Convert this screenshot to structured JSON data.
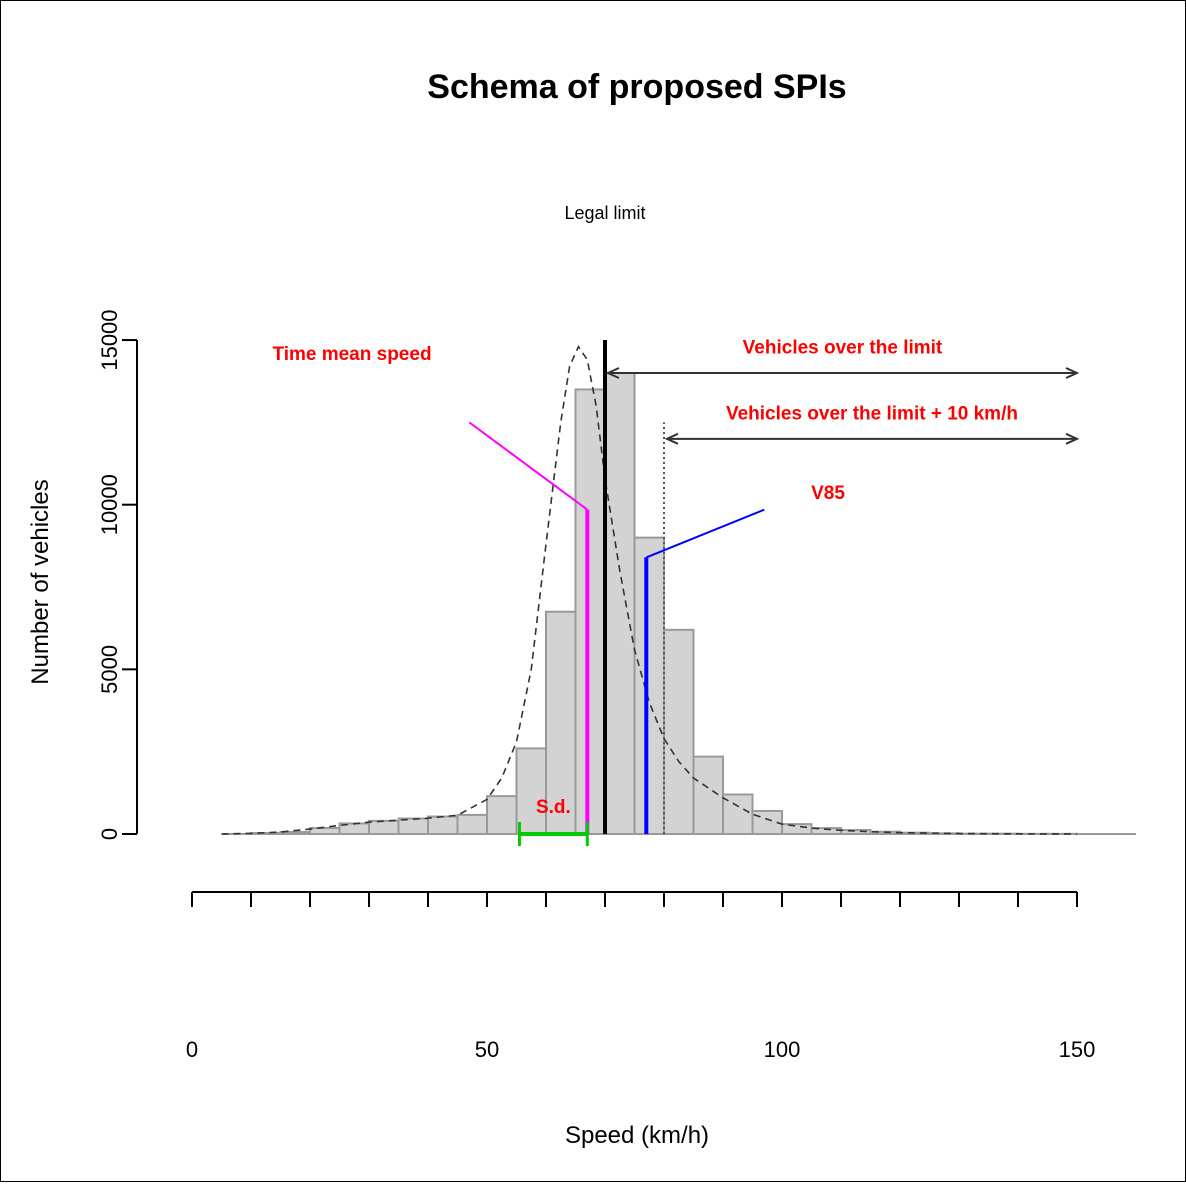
{
  "chart_data": {
    "type": "bar",
    "title": "Schema of proposed SPIs",
    "xlabel": "Speed (km/h)",
    "ylabel": "Number of vehicles",
    "xlim": [
      0,
      160
    ],
    "ylim": [
      0,
      15000
    ],
    "x_ticks": [
      0,
      10,
      20,
      30,
      40,
      50,
      60,
      70,
      80,
      90,
      100,
      110,
      120,
      130,
      140,
      150
    ],
    "x_tick_labels": [
      {
        "value": 0,
        "label": "0"
      },
      {
        "value": 50,
        "label": "50"
      },
      {
        "value": 100,
        "label": "100"
      },
      {
        "value": 150,
        "label": "150"
      }
    ],
    "y_tick_labels": [
      {
        "value": 0,
        "label": "0"
      },
      {
        "value": 5000,
        "label": "5000"
      },
      {
        "value": 10000,
        "label": "10000"
      },
      {
        "value": 15000,
        "label": "15000"
      }
    ],
    "grid": false,
    "bin_width": 5,
    "bins": [
      {
        "x0": 5,
        "value": 0
      },
      {
        "x0": 10,
        "value": 30
      },
      {
        "x0": 15,
        "value": 60
      },
      {
        "x0": 20,
        "value": 180
      },
      {
        "x0": 25,
        "value": 320
      },
      {
        "x0": 30,
        "value": 400
      },
      {
        "x0": 35,
        "value": 470
      },
      {
        "x0": 40,
        "value": 530
      },
      {
        "x0": 45,
        "value": 580
      },
      {
        "x0": 50,
        "value": 1150
      },
      {
        "x0": 55,
        "value": 2600
      },
      {
        "x0": 60,
        "value": 6750
      },
      {
        "x0": 65,
        "value": 13500
      },
      {
        "x0": 70,
        "value": 14000
      },
      {
        "x0": 75,
        "value": 9000
      },
      {
        "x0": 80,
        "value": 6200
      },
      {
        "x0": 85,
        "value": 2350
      },
      {
        "x0": 90,
        "value": 1200
      },
      {
        "x0": 95,
        "value": 700
      },
      {
        "x0": 100,
        "value": 300
      },
      {
        "x0": 105,
        "value": 180
      },
      {
        "x0": 110,
        "value": 120
      },
      {
        "x0": 115,
        "value": 70
      },
      {
        "x0": 120,
        "value": 40
      },
      {
        "x0": 125,
        "value": 20
      },
      {
        "x0": 130,
        "value": 10
      },
      {
        "x0": 135,
        "value": 10
      },
      {
        "x0": 140,
        "value": 5
      },
      {
        "x0": 145,
        "value": 5
      },
      {
        "x0": 150,
        "value": 0
      },
      {
        "x0": 155,
        "value": 0
      }
    ],
    "density_curve": [
      [
        5,
        0
      ],
      [
        10,
        20
      ],
      [
        15,
        60
      ],
      [
        20,
        150
      ],
      [
        25,
        260
      ],
      [
        30,
        360
      ],
      [
        35,
        420
      ],
      [
        40,
        480
      ],
      [
        45,
        570
      ],
      [
        50,
        1050
      ],
      [
        52.5,
        1700
      ],
      [
        55,
        2800
      ],
      [
        57.5,
        5000
      ],
      [
        60,
        8800
      ],
      [
        62.5,
        12500
      ],
      [
        64,
        14200
      ],
      [
        65.5,
        14800
      ],
      [
        67,
        14400
      ],
      [
        68.5,
        13000
      ],
      [
        70,
        10800
      ],
      [
        72.5,
        8000
      ],
      [
        75,
        5600
      ],
      [
        77.5,
        4000
      ],
      [
        80,
        2900
      ],
      [
        82.5,
        2200
      ],
      [
        85,
        1700
      ],
      [
        90,
        1100
      ],
      [
        95,
        600
      ],
      [
        100,
        300
      ],
      [
        105,
        180
      ],
      [
        110,
        110
      ],
      [
        115,
        70
      ],
      [
        120,
        40
      ],
      [
        130,
        15
      ],
      [
        140,
        5
      ],
      [
        150,
        0
      ]
    ],
    "legal_limit": {
      "x": 70,
      "label": "Legal limit",
      "color": "#000000"
    },
    "limit_plus_10": {
      "x": 80,
      "top": 12500,
      "color": "#555555"
    },
    "time_mean_speed": {
      "x": 67,
      "value": 9850,
      "label": "Time mean speed",
      "label_x": 47,
      "label_y": 13000,
      "leader_start": [
        47,
        12500
      ],
      "color": "#ff00ff"
    },
    "v85": {
      "x": 77,
      "value": 8400,
      "label": "V85",
      "label_x": 106,
      "label_y": 9800,
      "leader_end": [
        97,
        9850
      ],
      "color": "#0000ff"
    },
    "sd": {
      "x_from": 55.5,
      "x_to": 67,
      "label": "S.d.",
      "color": "#00cc00"
    },
    "arrows": [
      {
        "label": "Vehicles over the limit",
        "x_from": 70.5,
        "x_to": 150,
        "y": 14000,
        "label_y": 14800
      },
      {
        "label": "Vehicles over the limit + 10 km/h",
        "x_from": 80.5,
        "x_to": 150,
        "y": 12000,
        "label_y": 12800
      }
    ],
    "annotation_color": "#ff0000"
  }
}
